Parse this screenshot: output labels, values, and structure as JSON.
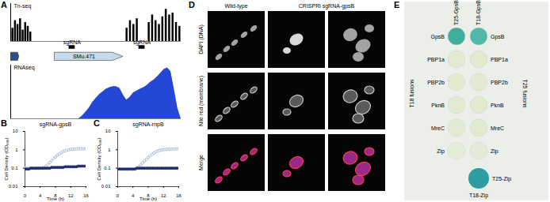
{
  "chart_data": [
    {
      "panel": "A",
      "type": "bar",
      "title": "Tn-seq",
      "color": "#000000",
      "tick_labels": false,
      "xlim": [
        0,
        100
      ],
      "ylim": [
        0,
        1
      ],
      "x": [
        1,
        2.5,
        4,
        5.5,
        7,
        8.5,
        10,
        11.5,
        68,
        70,
        72,
        74,
        81,
        83,
        85,
        87,
        89,
        91,
        93,
        95,
        97,
        99
      ],
      "values": [
        0.35,
        0.55,
        0.45,
        0.6,
        0.3,
        0.5,
        0.4,
        0.25,
        0.35,
        0.55,
        0.45,
        0.6,
        0.5,
        0.7,
        0.55,
        0.45,
        0.65,
        0.85,
        0.7,
        0.75,
        0.5,
        0.4
      ],
      "genes": [
        {
          "start": 0,
          "end": 5,
          "color": "#2b4f8a"
        },
        {
          "start": 26,
          "end": 66,
          "label": "SMu.471",
          "color": "#c5dbeb"
        }
      ],
      "sgrnas": {
        "label": "sgRNA",
        "x": [
          36,
          77
        ]
      }
    },
    {
      "type": "area",
      "title": "RNAseq",
      "color": "#2447d6",
      "tick_labels": false,
      "xlim": [
        0,
        100
      ],
      "ylim": [
        0,
        1
      ],
      "x": [
        0,
        40,
        42,
        44,
        46,
        48,
        50,
        52,
        54,
        56,
        58,
        60,
        62,
        64,
        66,
        68,
        70,
        72,
        74,
        76,
        78,
        80,
        82,
        84,
        86,
        88,
        90,
        92,
        94,
        96,
        98,
        100
      ],
      "values": [
        0,
        0,
        0.05,
        0.12,
        0.2,
        0.3,
        0.38,
        0.45,
        0.5,
        0.55,
        0.58,
        0.6,
        0.6,
        0.57,
        0.45,
        0.35,
        0.4,
        0.48,
        0.52,
        0.55,
        0.58,
        0.62,
        0.68,
        0.72,
        0.78,
        0.85,
        0.92,
        0.95,
        0.88,
        0.55,
        0.2,
        0
      ]
    },
    {
      "panel": "B",
      "type": "scatter",
      "title": "sgRNA-gpsB",
      "x_label": "Time (h)",
      "y_label": "Cell Density (OD₆₀₀)",
      "log": "y",
      "grid": false,
      "xlim": [
        0,
        16
      ],
      "xticks": [
        0,
        4,
        8,
        12,
        16
      ],
      "ylim": [
        0.01,
        10
      ],
      "yticks": [
        0.01,
        0.1,
        1,
        10
      ],
      "x": [
        0,
        0.5,
        1,
        1.5,
        2,
        2.5,
        3,
        3.5,
        4,
        4.5,
        5,
        5.5,
        6,
        6.5,
        7,
        7.5,
        8,
        8.5,
        9,
        9.5,
        10,
        10.5,
        11,
        11.5,
        12,
        12.5,
        13,
        13.5,
        14,
        14.5,
        15,
        15.5,
        16
      ],
      "series": [
        {
          "color": "#8fa9c9",
          "marker": "open",
          "values": [
            0.1,
            0.1,
            0.1,
            0.1,
            0.1,
            0.1,
            0.1,
            0.1,
            0.1,
            0.1,
            0.11,
            0.13,
            0.16,
            0.2,
            0.26,
            0.33,
            0.41,
            0.5,
            0.6,
            0.7,
            0.8,
            0.88,
            0.95,
            1.0,
            1.05,
            1.08,
            1.1,
            1.12,
            1.13,
            1.14,
            1.15,
            1.15,
            1.16
          ]
        },
        {
          "color": "#1f2d6b",
          "marker": "filled",
          "values": [
            0.09,
            0.09,
            0.09,
            0.1,
            0.1,
            0.1,
            0.1,
            0.1,
            0.1,
            0.1,
            0.1,
            0.1,
            0.1,
            0.1,
            0.11,
            0.11,
            0.11,
            0.11,
            0.11,
            0.11,
            0.11,
            0.12,
            0.12,
            0.12,
            0.12,
            0.12,
            0.12,
            0.12,
            0.13,
            0.13,
            0.13,
            0.13,
            0.13
          ]
        }
      ]
    },
    {
      "panel": "C",
      "type": "scatter",
      "title": "sgRNA-rnpB",
      "x_label": "Time (h)",
      "y_label": "Cell Density (OD₆₀₀)",
      "log": "y",
      "grid": false,
      "xlim": [
        0,
        16
      ],
      "xticks": [
        0,
        4,
        8,
        12,
        16
      ],
      "ylim": [
        0.01,
        10
      ],
      "yticks": [
        0.01,
        0.1,
        1,
        10
      ],
      "x": [
        0,
        0.5,
        1,
        1.5,
        2,
        2.5,
        3,
        3.5,
        4,
        4.5,
        5,
        5.5,
        6,
        6.5,
        7,
        7.5,
        8,
        8.5,
        9,
        9.5,
        10,
        10.5,
        11,
        11.5,
        12,
        12.5,
        13,
        13.5,
        14,
        14.5,
        15,
        15.5,
        16
      ],
      "series": [
        {
          "color": "#8fa9c9",
          "marker": "open",
          "values": [
            0.09,
            0.09,
            0.09,
            0.09,
            0.09,
            0.09,
            0.09,
            0.09,
            0.09,
            0.09,
            0.1,
            0.12,
            0.15,
            0.19,
            0.24,
            0.3,
            0.38,
            0.47,
            0.57,
            0.67,
            0.77,
            0.86,
            0.93,
            0.98,
            1.02,
            1.05,
            1.07,
            1.09,
            1.1,
            1.11,
            1.12,
            1.12,
            1.13
          ]
        },
        {
          "color": "#1f2d6b",
          "marker": "filled",
          "values": [
            0.09,
            0.09,
            0.09,
            0.09,
            0.09,
            0.09,
            0.09,
            0.09,
            0.09,
            0.09,
            0.1,
            0.1,
            0.1,
            0.1,
            0.1,
            0.1,
            0.1,
            0.1,
            0.1,
            0.1,
            0.1,
            0.1,
            0.1,
            0.1,
            0.1,
            0.1,
            0.1,
            0.1,
            0.1,
            0.1,
            0.1,
            0.1,
            0.1
          ]
        }
      ]
    }
  ],
  "microscopy": {
    "panel": "D",
    "column_groups": [
      {
        "label": "Wild-type",
        "images": 1
      },
      {
        "label": "CRISPRi sgRNA-gpsB",
        "images": 2
      }
    ],
    "rows": [
      "DAPI (DNA)",
      "Nile red (membrane)",
      "Merge"
    ]
  },
  "two_hybrid": {
    "panel": "E",
    "columns": [
      "T25-GpsB",
      "T18-GpsB"
    ],
    "left_title": "T18 fusions",
    "right_title": "T25 fusions",
    "left_labels": [
      "GpsB",
      "PBP1a",
      "PBP2b",
      "PknB",
      "MreC",
      "Zip"
    ],
    "right_labels": [
      "GpsB",
      "PBP1a",
      "PBP2b",
      "PknB",
      "MreC",
      "Zip"
    ],
    "spots": [
      [
        "#3fae9e",
        "#52b8a6"
      ],
      [
        "#e3ead2",
        "#e1e9d0"
      ],
      [
        "#e3ead2",
        "#e1e9d0"
      ],
      [
        "#e3ead2",
        "#e1e9d0"
      ],
      [
        "#e3ead2",
        "#e1e9d0"
      ],
      [
        "#e6ecd8",
        "#e4eada"
      ]
    ],
    "control": {
      "row_label": "T25-Zip",
      "column_label": "T18-Zip",
      "color": "#2c9da3"
    }
  }
}
